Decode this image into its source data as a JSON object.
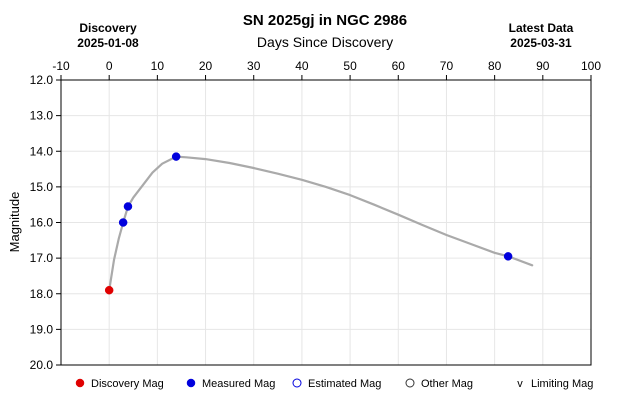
{
  "chart_data": {
    "type": "scatter",
    "title": "SN 2025gj in NGC 2986",
    "xlabel": "Days Since Discovery",
    "ylabel": "Magnitude",
    "xlim": [
      -10,
      100
    ],
    "ylim": [
      12.0,
      20.0
    ],
    "y_inverted": true,
    "grid": true,
    "x_axis_position": "top",
    "x_ticks": [
      "-10",
      "0",
      "10",
      "20",
      "30",
      "40",
      "50",
      "60",
      "70",
      "80",
      "90",
      "100"
    ],
    "y_ticks": [
      "12.0",
      "13.0",
      "14.0",
      "15.0",
      "16.0",
      "17.0",
      "18.0",
      "19.0",
      "20.0"
    ],
    "discovery": {
      "label": "Discovery",
      "date": "2025-01-08"
    },
    "latest": {
      "label": "Latest Data",
      "date": "2025-03-31"
    },
    "series": [
      {
        "name": "Discovery Mag",
        "color": "#e00000",
        "marker": "filled-circle",
        "points": [
          [
            0,
            17.9
          ]
        ]
      },
      {
        "name": "Measured Mag",
        "color": "#0000dd",
        "marker": "filled-circle",
        "points": [
          [
            2.9,
            16.0
          ],
          [
            3.9,
            15.55
          ],
          [
            13.9,
            14.15
          ],
          [
            82.8,
            16.95
          ]
        ]
      },
      {
        "name": "Estimated Mag",
        "color": "#0000dd",
        "marker": "open-circle",
        "points": []
      },
      {
        "name": "Other Mag",
        "color": "#333333",
        "marker": "open-circle",
        "points": []
      },
      {
        "name": "Limiting Mag",
        "color": "#333333",
        "marker": "v",
        "points": []
      }
    ],
    "fit_curve": {
      "color": "#aaaaaa",
      "points": [
        [
          0,
          17.9
        ],
        [
          1,
          17.05
        ],
        [
          2,
          16.45
        ],
        [
          2.9,
          16.0
        ],
        [
          3.9,
          15.55
        ],
        [
          5,
          15.3
        ],
        [
          7,
          14.95
        ],
        [
          9,
          14.6
        ],
        [
          11,
          14.35
        ],
        [
          13.9,
          14.15
        ],
        [
          16,
          14.17
        ],
        [
          20,
          14.22
        ],
        [
          25,
          14.33
        ],
        [
          30,
          14.47
        ],
        [
          35,
          14.63
        ],
        [
          40,
          14.8
        ],
        [
          45,
          15.0
        ],
        [
          50,
          15.23
        ],
        [
          55,
          15.5
        ],
        [
          60,
          15.78
        ],
        [
          65,
          16.07
        ],
        [
          70,
          16.35
        ],
        [
          75,
          16.6
        ],
        [
          80,
          16.85
        ],
        [
          82.8,
          16.95
        ],
        [
          87.8,
          17.2
        ]
      ]
    }
  }
}
